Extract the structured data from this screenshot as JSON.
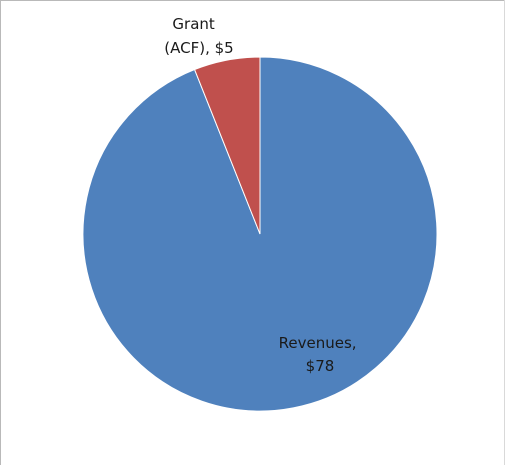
{
  "chart_data": {
    "type": "pie",
    "title": "",
    "slices": [
      {
        "label": "Revenues",
        "value": 78,
        "label_lines": [
          "Revenues,",
          "$78"
        ],
        "color": "#4f81bd"
      },
      {
        "label": "Grant (ACF)",
        "value": 5,
        "label_lines": [
          "Grant",
          "(ACF), $5"
        ],
        "color": "#c0504d"
      }
    ],
    "legend": "none"
  }
}
